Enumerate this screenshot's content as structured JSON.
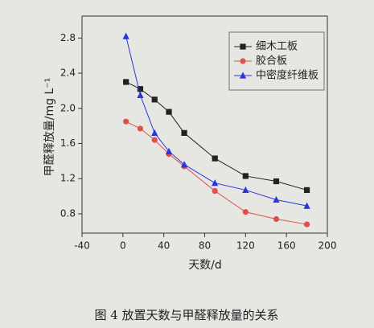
{
  "chart_data": {
    "type": "line",
    "caption": "图 4  放置天数与甲醛释放量的关系",
    "x_label": "天数/d",
    "y_label": "甲醛释放量/mg L⁻¹",
    "x": [
      3,
      17,
      31,
      45,
      60,
      90,
      120,
      150,
      180
    ],
    "series": [
      {
        "name": "细木工板",
        "color": "#222222",
        "marker": "square",
        "values": [
          2.3,
          2.22,
          2.1,
          1.96,
          1.72,
          1.43,
          1.23,
          1.17,
          1.07
        ]
      },
      {
        "name": "胶合板",
        "color": "#e0504a",
        "marker": "circle",
        "values": [
          1.85,
          1.77,
          1.64,
          1.48,
          1.34,
          1.06,
          0.82,
          0.74,
          0.68
        ]
      },
      {
        "name": "中密度纤维板",
        "color": "#2a36d8",
        "marker": "triangle",
        "values": [
          2.82,
          2.15,
          1.72,
          1.51,
          1.36,
          1.15,
          1.07,
          0.96,
          0.89
        ]
      }
    ],
    "xlim": [
      -40,
      200
    ],
    "xticks": [
      -40,
      0,
      40,
      80,
      120,
      160,
      200
    ],
    "ylim": [
      0.58,
      3.05
    ],
    "yticks": [
      0.8,
      1.2,
      1.6,
      {
        "value": 2,
        "label": "2.0"
      },
      2.4,
      2.8
    ],
    "legend": "top-right"
  }
}
